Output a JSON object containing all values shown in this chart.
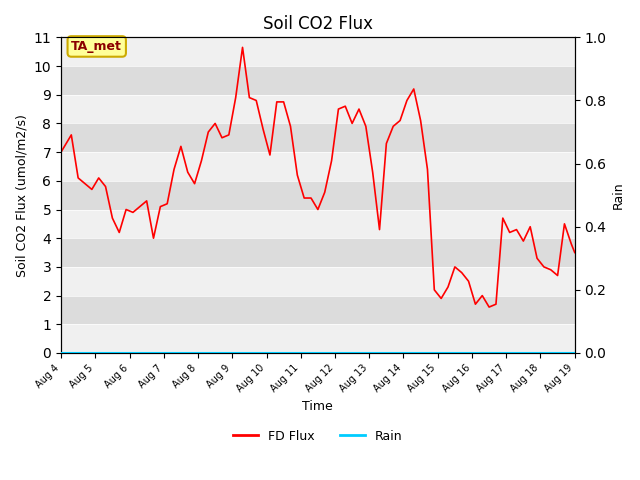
{
  "title": "Soil CO2 Flux",
  "xlabel": "Time",
  "ylabel_left": "Soil CO2 Flux (umol/m2/s)",
  "ylabel_right": "Rain",
  "ylim_left": [
    0,
    11.0
  ],
  "ylim_right": [
    0,
    1.0
  ],
  "yticks_left": [
    0.0,
    1.0,
    2.0,
    3.0,
    4.0,
    5.0,
    6.0,
    7.0,
    8.0,
    9.0,
    10.0,
    11.0
  ],
  "yticks_right": [
    0.0,
    0.2,
    0.4,
    0.6,
    0.8,
    1.0
  ],
  "xtick_labels": [
    "Aug 4",
    "Aug 5",
    "Aug 6",
    "Aug 7",
    "Aug 8",
    "Aug 9",
    "Aug 10",
    "Aug 11",
    "Aug 12",
    "Aug 13",
    "Aug 14",
    "Aug 15",
    "Aug 16",
    "Aug 17",
    "Aug 18",
    "Aug 19"
  ],
  "flux_color": "#FF0000",
  "rain_color": "#00CCFF",
  "background_color": "#E8E8E8",
  "band_color_light": "#F0F0F0",
  "band_color_dark": "#DCDCDC",
  "legend_label_flux": "FD Flux",
  "legend_label_rain": "Rain",
  "annotation_text": "TA_met",
  "annotation_bg": "#FFFF99",
  "annotation_border": "#CCAA00",
  "flux_x": [
    0,
    0.3,
    0.5,
    0.7,
    0.9,
    1.1,
    1.3,
    1.5,
    1.7,
    1.9,
    2.1,
    2.3,
    2.5,
    2.7,
    2.9,
    3.1,
    3.3,
    3.5,
    3.7,
    3.9,
    4.1,
    4.3,
    4.5,
    4.7,
    4.9,
    5.1,
    5.3,
    5.5,
    5.7,
    5.9,
    6.1,
    6.3,
    6.5,
    6.7,
    6.9,
    7.1,
    7.3,
    7.5,
    7.7,
    7.9,
    8.1,
    8.3,
    8.5,
    8.7,
    8.9,
    9.1,
    9.3,
    9.5,
    9.7,
    9.9,
    10.1,
    10.3,
    10.5,
    10.7,
    10.9,
    11.1,
    11.3,
    11.5,
    11.7,
    11.9,
    12.1,
    12.3,
    12.5,
    12.7,
    12.9,
    13.1,
    13.3,
    13.5,
    13.7,
    13.9,
    14.1,
    14.3,
    14.5,
    14.7,
    14.9,
    15.0
  ],
  "flux_y": [
    7.0,
    7.6,
    6.1,
    5.9,
    5.7,
    6.1,
    5.8,
    4.7,
    4.2,
    5.0,
    4.9,
    5.1,
    5.3,
    4.0,
    5.1,
    5.2,
    6.4,
    7.2,
    6.3,
    5.9,
    6.7,
    7.7,
    8.0,
    7.5,
    7.6,
    8.9,
    10.65,
    8.9,
    8.8,
    7.8,
    6.9,
    8.75,
    8.75,
    7.9,
    6.2,
    5.4,
    5.4,
    5.0,
    5.6,
    6.7,
    8.5,
    8.6,
    8.0,
    8.5,
    7.9,
    6.3,
    4.3,
    7.3,
    7.9,
    8.1,
    8.8,
    9.2,
    8.1,
    6.4,
    2.2,
    1.9,
    2.3,
    3.0,
    2.8,
    2.5,
    1.7,
    2.0,
    1.6,
    1.7,
    4.7,
    4.2,
    4.3,
    3.9,
    4.4,
    3.3,
    3.0,
    2.9,
    2.7,
    4.5,
    3.8,
    3.5
  ],
  "rain_y": [
    0,
    0,
    0,
    0,
    0,
    0,
    0,
    0,
    0,
    0,
    0,
    0,
    0,
    0,
    0,
    0,
    0,
    0,
    0,
    0,
    0,
    0,
    0,
    0,
    0,
    0,
    0,
    0,
    0,
    0,
    0,
    0,
    0,
    0,
    0,
    0,
    0,
    0,
    0,
    0,
    0,
    0,
    0,
    0,
    0,
    0,
    0,
    0,
    0,
    0,
    0,
    0,
    0,
    0,
    0,
    0,
    0,
    0,
    0,
    0,
    0,
    0,
    0,
    0,
    0,
    0,
    0,
    0,
    0,
    0,
    0,
    0,
    0,
    0,
    0,
    0
  ]
}
